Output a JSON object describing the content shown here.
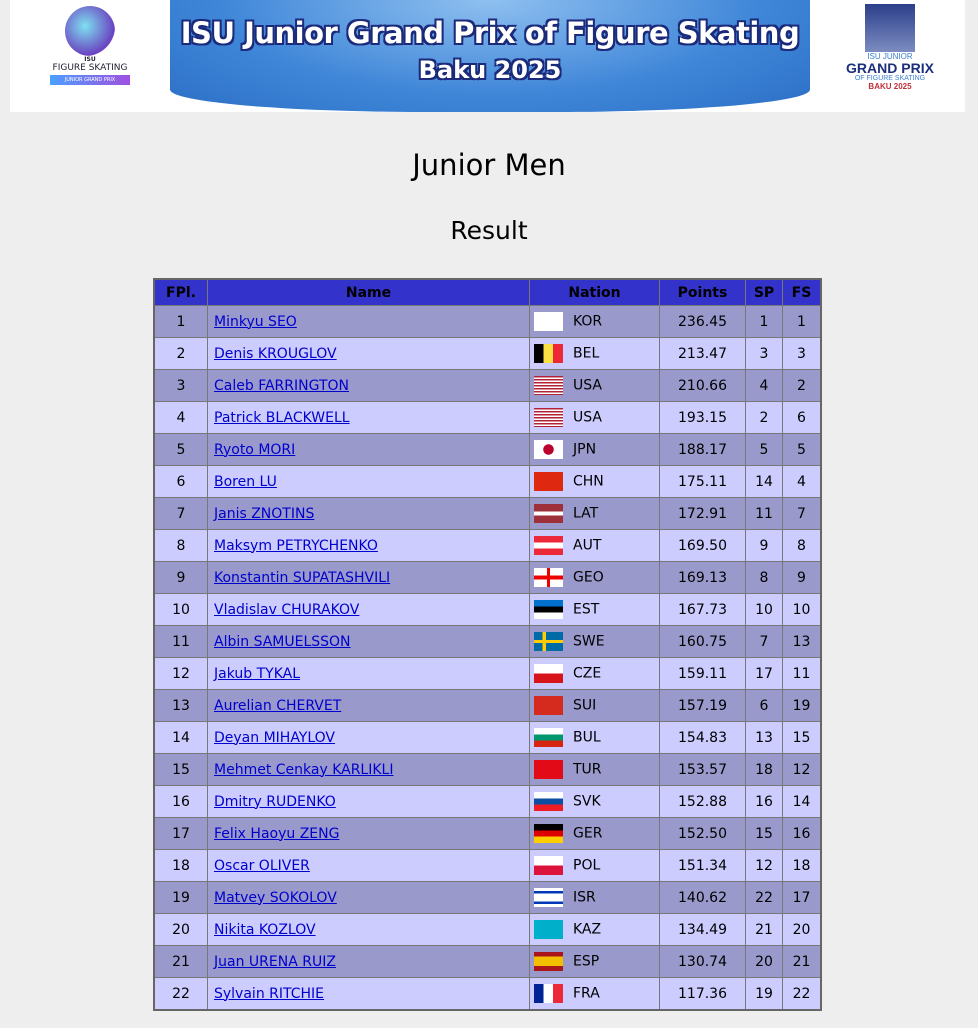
{
  "banner": {
    "title": "ISU Junior Grand Prix of Figure Skating",
    "subtitle": "Baku 2025",
    "left_logo": {
      "line1": "ISU",
      "line2": "FIGURE SKATING",
      "line3": "JUNIOR GRAND PRIX"
    },
    "right_logo": {
      "line1": "ISU JUNIOR",
      "line2": "GRAND PRIX",
      "line3": "OF FIGURE SKATING",
      "line4": "BAKU 2025"
    }
  },
  "category": "Junior Men",
  "segment": "Result",
  "table": {
    "headers": [
      "FPl.",
      "Name",
      "Nation",
      "Points",
      "SP",
      "FS"
    ],
    "rows": [
      {
        "fpl": "1",
        "name": "Minkyu SEO",
        "nation": "KOR",
        "points": "236.45",
        "sp": "1",
        "fs": "1"
      },
      {
        "fpl": "2",
        "name": "Denis KROUGLOV",
        "nation": "BEL",
        "points": "213.47",
        "sp": "3",
        "fs": "3"
      },
      {
        "fpl": "3",
        "name": "Caleb FARRINGTON",
        "nation": "USA",
        "points": "210.66",
        "sp": "4",
        "fs": "2"
      },
      {
        "fpl": "4",
        "name": "Patrick BLACKWELL",
        "nation": "USA",
        "points": "193.15",
        "sp": "2",
        "fs": "6"
      },
      {
        "fpl": "5",
        "name": "Ryoto MORI",
        "nation": "JPN",
        "points": "188.17",
        "sp": "5",
        "fs": "5"
      },
      {
        "fpl": "6",
        "name": "Boren LU",
        "nation": "CHN",
        "points": "175.11",
        "sp": "14",
        "fs": "4"
      },
      {
        "fpl": "7",
        "name": "Janis ZNOTINS",
        "nation": "LAT",
        "points": "172.91",
        "sp": "11",
        "fs": "7"
      },
      {
        "fpl": "8",
        "name": "Maksym PETRYCHENKO",
        "nation": "AUT",
        "points": "169.50",
        "sp": "9",
        "fs": "8"
      },
      {
        "fpl": "9",
        "name": "Konstantin SUPATASHVILI",
        "nation": "GEO",
        "points": "169.13",
        "sp": "8",
        "fs": "9"
      },
      {
        "fpl": "10",
        "name": "Vladislav CHURAKOV",
        "nation": "EST",
        "points": "167.73",
        "sp": "10",
        "fs": "10"
      },
      {
        "fpl": "11",
        "name": "Albin SAMUELSSON",
        "nation": "SWE",
        "points": "160.75",
        "sp": "7",
        "fs": "13"
      },
      {
        "fpl": "12",
        "name": "Jakub TYKAL",
        "nation": "CZE",
        "points": "159.11",
        "sp": "17",
        "fs": "11"
      },
      {
        "fpl": "13",
        "name": "Aurelian CHERVET",
        "nation": "SUI",
        "points": "157.19",
        "sp": "6",
        "fs": "19"
      },
      {
        "fpl": "14",
        "name": "Deyan MIHAYLOV",
        "nation": "BUL",
        "points": "154.83",
        "sp": "13",
        "fs": "15"
      },
      {
        "fpl": "15",
        "name": "Mehmet Cenkay KARLIKLI",
        "nation": "TUR",
        "points": "153.57",
        "sp": "18",
        "fs": "12"
      },
      {
        "fpl": "16",
        "name": "Dmitry RUDENKO",
        "nation": "SVK",
        "points": "152.88",
        "sp": "16",
        "fs": "14"
      },
      {
        "fpl": "17",
        "name": "Felix Haoyu ZENG",
        "nation": "GER",
        "points": "152.50",
        "sp": "15",
        "fs": "16"
      },
      {
        "fpl": "18",
        "name": "Oscar OLIVER",
        "nation": "POL",
        "points": "151.34",
        "sp": "12",
        "fs": "18"
      },
      {
        "fpl": "19",
        "name": "Matvey SOKOLOV",
        "nation": "ISR",
        "points": "140.62",
        "sp": "22",
        "fs": "17"
      },
      {
        "fpl": "20",
        "name": "Nikita KOZLOV",
        "nation": "KAZ",
        "points": "134.49",
        "sp": "21",
        "fs": "20"
      },
      {
        "fpl": "21",
        "name": "Juan URENA RUIZ",
        "nation": "ESP",
        "points": "130.74",
        "sp": "20",
        "fs": "21"
      },
      {
        "fpl": "22",
        "name": "Sylvain RITCHIE",
        "nation": "FRA",
        "points": "117.36",
        "sp": "19",
        "fs": "22"
      }
    ]
  },
  "colors": {
    "header": "#3333cc",
    "row_odd": "#9999cc",
    "row_even": "#ccccff",
    "link": "#0000cc"
  }
}
